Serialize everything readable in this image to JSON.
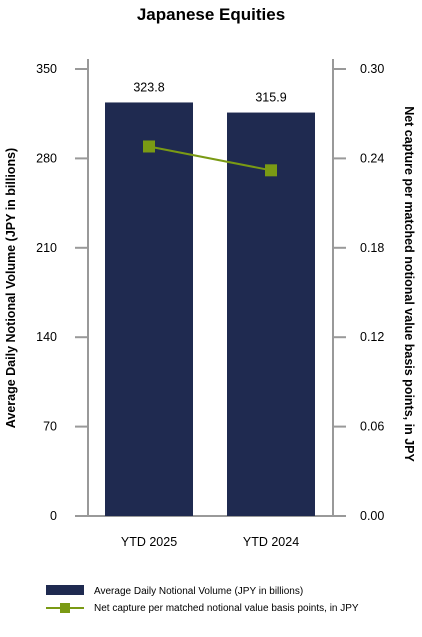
{
  "chart_data": {
    "type": "bar",
    "title": "Japanese Equities",
    "categories": [
      "YTD 2025",
      "YTD 2024"
    ],
    "series": [
      {
        "name": "Average Daily Notional Volume (JPY in billions)",
        "type": "bar",
        "axis": "left",
        "values": [
          323.8,
          315.9
        ],
        "color": "#1f2a50",
        "data_labels": [
          "323.8",
          "315.9"
        ]
      },
      {
        "name": "Net capture per matched notional value basis points, in JPY",
        "type": "line",
        "axis": "right",
        "values": [
          0.248,
          0.232
        ],
        "color": "#7a9a14"
      }
    ],
    "ylabel": "Average Daily Notional Volume (JPY in billions)",
    "ylim": [
      0,
      350
    ],
    "yticks": [
      "0",
      "70",
      "140",
      "210",
      "280",
      "350"
    ],
    "y2label": "Net capture per matched notional value basis points, in JPY",
    "y2lim": [
      0,
      0.3
    ],
    "y2ticks": [
      "0.00",
      "0.06",
      "0.12",
      "0.18",
      "0.24",
      "0.30"
    ],
    "grid": false,
    "legend_position": "bottom"
  }
}
